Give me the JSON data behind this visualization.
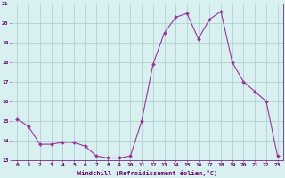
{
  "x": [
    0,
    1,
    2,
    3,
    4,
    5,
    6,
    7,
    8,
    9,
    10,
    11,
    12,
    13,
    14,
    15,
    16,
    17,
    18,
    19,
    20,
    21,
    22,
    23
  ],
  "y": [
    15.1,
    14.7,
    13.8,
    13.8,
    13.9,
    13.9,
    13.7,
    13.2,
    13.1,
    13.1,
    13.2,
    15.0,
    17.9,
    19.5,
    20.3,
    20.5,
    19.2,
    20.2,
    20.6,
    18.0,
    17.0,
    16.5,
    16.0,
    13.2
  ],
  "line_color": "#993399",
  "marker": "D",
  "marker_size": 2.0,
  "bg_color": "#d8f0f0",
  "grid_color": "#aacccc",
  "xlabel": "Windchill (Refroidissement éolien,°C)",
  "xlabel_color": "#660066",
  "tick_color": "#660066",
  "ylim": [
    13,
    21
  ],
  "xlim": [
    -0.5,
    23.5
  ],
  "yticks": [
    13,
    14,
    15,
    16,
    17,
    18,
    19,
    20,
    21
  ],
  "xticks": [
    0,
    1,
    2,
    3,
    4,
    5,
    6,
    7,
    8,
    9,
    10,
    11,
    12,
    13,
    14,
    15,
    16,
    17,
    18,
    19,
    20,
    21,
    22,
    23
  ]
}
